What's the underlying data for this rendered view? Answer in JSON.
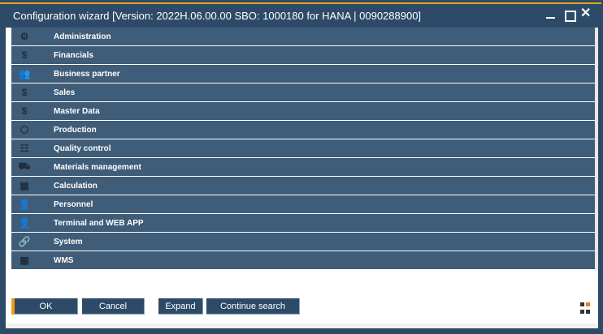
{
  "window": {
    "title": "Configuration wizard [Version: 2022H.06.00.00 SBO: 1000180 for HANA | 0090288900]",
    "accent": "#e8a21a"
  },
  "rows": [
    {
      "label": "Administration",
      "icon": "gear-person-icon",
      "glyph": "⚙"
    },
    {
      "label": "Financials",
      "icon": "money-bag-icon",
      "glyph": "$"
    },
    {
      "label": "Business partner",
      "icon": "people-icon",
      "glyph": "👥"
    },
    {
      "label": "Sales",
      "icon": "dollar-document-icon",
      "glyph": "$"
    },
    {
      "label": "Master Data",
      "icon": "money-bag-icon",
      "glyph": "$"
    },
    {
      "label": "Production",
      "icon": "box-icon",
      "glyph": "⬡"
    },
    {
      "label": "Quality control",
      "icon": "checklist-icon",
      "glyph": "☷"
    },
    {
      "label": "Materials management",
      "icon": "forklift-icon",
      "glyph": "⛟"
    },
    {
      "label": "Calculation",
      "icon": "calculator-icon",
      "glyph": "▦"
    },
    {
      "label": "Personnel",
      "icon": "person-icon",
      "glyph": "👤"
    },
    {
      "label": "Terminal and WEB APP",
      "icon": "person-icon",
      "glyph": "👤"
    },
    {
      "label": "System",
      "icon": "link-icon",
      "glyph": "🔗"
    },
    {
      "label": "WMS",
      "icon": "warehouse-icon",
      "glyph": "▩"
    }
  ],
  "buttons": {
    "ok": "OK",
    "cancel": "Cancel",
    "expand": "Expand",
    "continue_search": "Continue search"
  }
}
